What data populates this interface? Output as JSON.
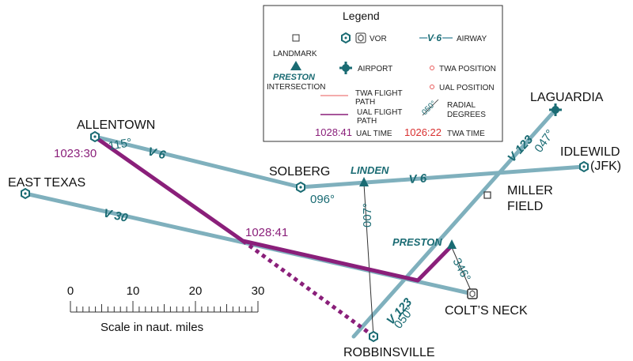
{
  "colors": {
    "airway": "#7fb0bd",
    "airway_text": "#1a6b73",
    "ual_path": "#8a1f7a",
    "twa_path": "#e85a5a",
    "landmark": "#333333",
    "background": "#ffffff"
  },
  "places": {
    "allentown": "ALLENTOWN",
    "east_texas": "EAST TEXAS",
    "solberg": "SOLBERG",
    "laguardia": "LAGUARDIA",
    "idlewild": "IDLEWILD",
    "jfk": "(JFK)",
    "miller_1": "MILLER",
    "miller_2": "FIELD",
    "colts_neck": "COLT’S NECK",
    "robbinsville": "ROBBINSVILLE"
  },
  "intersections": {
    "linden": "LINDEN",
    "preston": "PRESTON"
  },
  "airways": {
    "v6_a": "V 6",
    "v6_b": "V 6",
    "v30": "V 30",
    "v123_a": "V 123",
    "v123_b": "V 123"
  },
  "radials": {
    "allentown": "115°",
    "solberg": "096°",
    "robbinsville_007": "007°",
    "laguardia_047": "047°",
    "preston_346": "346°",
    "robbinsville_050": "050°"
  },
  "times": {
    "ual_allentown": "1023:30",
    "ual_crossing": "1028:41"
  },
  "legend": {
    "title": "Legend",
    "landmark": "LANDMARK",
    "vor": "VOR",
    "airway_sample": "V 6",
    "airway": "AIRWAY",
    "airport": "AIRPORT",
    "twa_position": "TWA POSITION",
    "intersection_sample": "PRESTON",
    "intersection": "INTERSECTION",
    "ual_position": "UAL POSITION",
    "twa_path_1": "TWA FLIGHT",
    "twa_path_2": "PATH",
    "ual_path_1": "UAL FLIGHT",
    "ual_path_2": "PATH",
    "radial_sample": "050°",
    "radial_1": "RADIAL",
    "radial_2": "DEGREES",
    "ual_time_sample": "1028:41",
    "ual_time": "UAL TIME",
    "twa_time_sample": "1026:22",
    "twa_time": "TWA TIME"
  },
  "scale": {
    "ticks": [
      "0",
      "10",
      "20",
      "30"
    ],
    "label": "Scale in naut. miles"
  }
}
